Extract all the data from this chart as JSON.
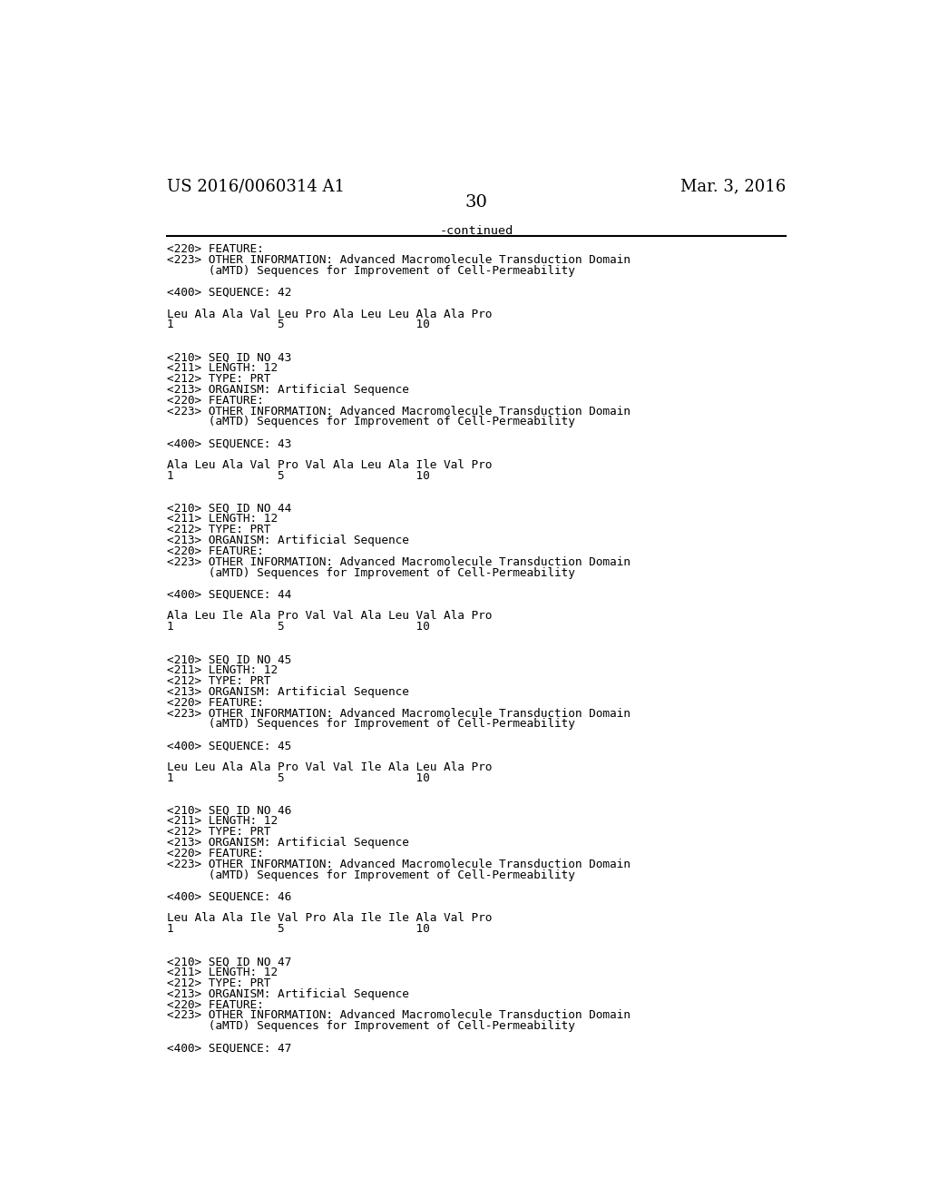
{
  "background_color": "#ffffff",
  "top_left_text": "US 2016/0060314 A1",
  "top_right_text": "Mar. 3, 2016",
  "page_number": "30",
  "continued_text": "-continued",
  "font_size_header": 13,
  "font_size_mono": 9.2,
  "font_size_page_num": 14,
  "lines": [
    "<220> FEATURE:",
    "<223> OTHER INFORMATION: Advanced Macromolecule Transduction Domain",
    "      (aMTD) Sequences for Improvement of Cell-Permeability",
    "",
    "<400> SEQUENCE: 42",
    "",
    "Leu Ala Ala Val Leu Pro Ala Leu Leu Ala Ala Pro",
    "1               5                   10",
    "",
    "",
    "<210> SEQ ID NO 43",
    "<211> LENGTH: 12",
    "<212> TYPE: PRT",
    "<213> ORGANISM: Artificial Sequence",
    "<220> FEATURE:",
    "<223> OTHER INFORMATION: Advanced Macromolecule Transduction Domain",
    "      (aMTD) Sequences for Improvement of Cell-Permeability",
    "",
    "<400> SEQUENCE: 43",
    "",
    "Ala Leu Ala Val Pro Val Ala Leu Ala Ile Val Pro",
    "1               5                   10",
    "",
    "",
    "<210> SEQ ID NO 44",
    "<211> LENGTH: 12",
    "<212> TYPE: PRT",
    "<213> ORGANISM: Artificial Sequence",
    "<220> FEATURE:",
    "<223> OTHER INFORMATION: Advanced Macromolecule Transduction Domain",
    "      (aMTD) Sequences for Improvement of Cell-Permeability",
    "",
    "<400> SEQUENCE: 44",
    "",
    "Ala Leu Ile Ala Pro Val Val Ala Leu Val Ala Pro",
    "1               5                   10",
    "",
    "",
    "<210> SEQ ID NO 45",
    "<211> LENGTH: 12",
    "<212> TYPE: PRT",
    "<213> ORGANISM: Artificial Sequence",
    "<220> FEATURE:",
    "<223> OTHER INFORMATION: Advanced Macromolecule Transduction Domain",
    "      (aMTD) Sequences for Improvement of Cell-Permeability",
    "",
    "<400> SEQUENCE: 45",
    "",
    "Leu Leu Ala Ala Pro Val Val Ile Ala Leu Ala Pro",
    "1               5                   10",
    "",
    "",
    "<210> SEQ ID NO 46",
    "<211> LENGTH: 12",
    "<212> TYPE: PRT",
    "<213> ORGANISM: Artificial Sequence",
    "<220> FEATURE:",
    "<223> OTHER INFORMATION: Advanced Macromolecule Transduction Domain",
    "      (aMTD) Sequences for Improvement of Cell-Permeability",
    "",
    "<400> SEQUENCE: 46",
    "",
    "Leu Ala Ala Ile Val Pro Ala Ile Ile Ala Val Pro",
    "1               5                   10",
    "",
    "",
    "<210> SEQ ID NO 47",
    "<211> LENGTH: 12",
    "<212> TYPE: PRT",
    "<213> ORGANISM: Artificial Sequence",
    "<220> FEATURE:",
    "<223> OTHER INFORMATION: Advanced Macromolecule Transduction Domain",
    "      (aMTD) Sequences for Improvement of Cell-Permeability",
    "",
    "<400> SEQUENCE: 47"
  ]
}
